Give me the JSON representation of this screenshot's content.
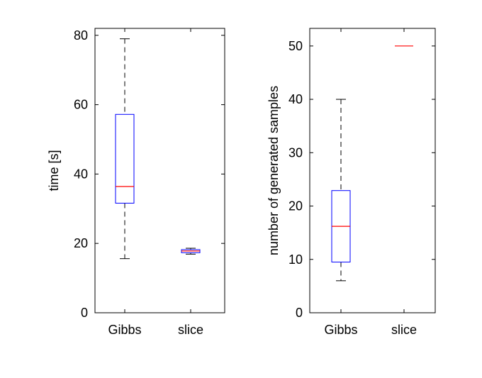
{
  "chart_data": [
    {
      "type": "box",
      "categories": [
        "Gibbs",
        "slice"
      ],
      "ylabel": "time [s]",
      "xlabel": "",
      "ylim": [
        0,
        82
      ],
      "yticks": [
        0,
        20,
        40,
        60,
        80
      ],
      "boxes": [
        {
          "category": "Gibbs",
          "whisker_low": 15.6,
          "q1": 31.6,
          "median": 36.4,
          "q3": 57.2,
          "whisker_high": 79
        },
        {
          "category": "slice",
          "whisker_low": 16.9,
          "q1": 17.3,
          "median": 17.8,
          "q3": 18.2,
          "whisker_high": 18.6
        }
      ],
      "colors": {
        "box": "#0000ff",
        "median": "#ff0000",
        "whisker": "#000000"
      }
    },
    {
      "type": "box",
      "categories": [
        "Gibbs",
        "slice"
      ],
      "ylabel": "number of generated samples",
      "xlabel": "",
      "ylim": [
        0,
        53.3
      ],
      "yticks": [
        0,
        10,
        20,
        30,
        40,
        50
      ],
      "boxes": [
        {
          "category": "Gibbs",
          "whisker_low": 6,
          "q1": 9.5,
          "median": 16.2,
          "q3": 22.9,
          "whisker_high": 40
        },
        {
          "category": "slice",
          "whisker_low": 50,
          "q1": 50,
          "median": 50,
          "q3": 50,
          "whisker_high": 50
        }
      ],
      "colors": {
        "box": "#0000ff",
        "median": "#ff0000",
        "whisker": "#000000"
      }
    }
  ]
}
